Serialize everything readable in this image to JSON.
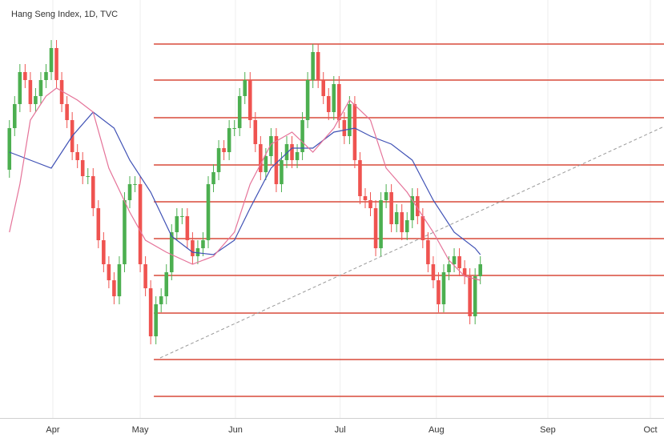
{
  "chart_data": {
    "type": "candlestick",
    "title": "Hang Seng Index, 1D, TVC",
    "xlim": [
      -1.8,
      125.1
    ],
    "ylim": [
      30,
      552
    ],
    "xticks": [
      {
        "value": 8.3,
        "label": "Apr"
      },
      {
        "value": 25,
        "label": "May"
      },
      {
        "value": 43.2,
        "label": "Jun"
      },
      {
        "value": 63.2,
        "label": "Jul"
      },
      {
        "value": 81.6,
        "label": "Aug"
      },
      {
        "value": 102.9,
        "label": "Sep"
      },
      {
        "value": 122.5,
        "label": "Oct"
      }
    ],
    "grid": true,
    "up_color": "#4caf50",
    "down_color": "#ef5350",
    "open": [
      340,
      392,
      422,
      462,
      452,
      422,
      432,
      452,
      462,
      492,
      452,
      422,
      402,
      362,
      352,
      332,
      332,
      292,
      252,
      222,
      202,
      182,
      222,
      302,
      322,
      322,
      222,
      192,
      132,
      172,
      182,
      212,
      262,
      282,
      282,
      252,
      232,
      242,
      252,
      322,
      337,
      367,
      362,
      392,
      392,
      432,
      452,
      402,
      372,
      337,
      357,
      382,
      322,
      352,
      372,
      352,
      362,
      402,
      452,
      487,
      452,
      432,
      412,
      447,
      402,
      382,
      422,
      352,
      307,
      302,
      292,
      242,
      302,
      312,
      272,
      287,
      262,
      277,
      307,
      282,
      252,
      222,
      202,
      172,
      212,
      222,
      232,
      217,
      207,
      157,
      207
    ],
    "high": [
      402,
      432,
      472,
      472,
      462,
      442,
      462,
      472,
      502,
      502,
      462,
      432,
      412,
      372,
      362,
      342,
      342,
      302,
      262,
      232,
      212,
      232,
      312,
      332,
      332,
      332,
      232,
      202,
      182,
      192,
      222,
      272,
      292,
      292,
      292,
      262,
      252,
      262,
      332,
      347,
      377,
      377,
      402,
      402,
      442,
      462,
      462,
      412,
      382,
      367,
      392,
      392,
      362,
      382,
      382,
      372,
      412,
      462,
      497,
      497,
      462,
      442,
      457,
      457,
      412,
      432,
      432,
      362,
      317,
      312,
      302,
      312,
      322,
      322,
      297,
      297,
      287,
      317,
      317,
      292,
      262,
      232,
      212,
      222,
      232,
      242,
      242,
      227,
      217,
      217,
      232
    ],
    "low": [
      330,
      382,
      412,
      442,
      412,
      412,
      422,
      442,
      452,
      442,
      412,
      392,
      352,
      342,
      322,
      322,
      282,
      242,
      212,
      192,
      172,
      172,
      212,
      292,
      312,
      212,
      182,
      122,
      122,
      162,
      172,
      202,
      252,
      272,
      242,
      222,
      222,
      232,
      242,
      312,
      327,
      352,
      352,
      382,
      382,
      422,
      392,
      362,
      327,
      327,
      347,
      312,
      312,
      342,
      342,
      342,
      352,
      392,
      442,
      442,
      422,
      402,
      402,
      392,
      372,
      372,
      342,
      297,
      292,
      282,
      232,
      232,
      292,
      262,
      262,
      252,
      252,
      267,
      272,
      242,
      212,
      192,
      162,
      162,
      202,
      212,
      207,
      197,
      147,
      147,
      197
    ],
    "close": [
      392,
      422,
      462,
      452,
      422,
      432,
      452,
      462,
      492,
      452,
      422,
      402,
      362,
      352,
      332,
      332,
      292,
      252,
      222,
      202,
      182,
      222,
      302,
      322,
      322,
      222,
      192,
      132,
      172,
      182,
      212,
      262,
      282,
      282,
      252,
      232,
      242,
      252,
      322,
      337,
      367,
      362,
      392,
      392,
      432,
      452,
      402,
      372,
      337,
      357,
      382,
      322,
      352,
      372,
      352,
      362,
      402,
      452,
      487,
      452,
      432,
      412,
      447,
      402,
      382,
      422,
      352,
      307,
      302,
      292,
      242,
      302,
      312,
      272,
      287,
      262,
      277,
      307,
      282,
      252,
      222,
      202,
      172,
      212,
      222,
      232,
      217,
      207,
      157,
      207,
      222
    ],
    "ma": [
      {
        "color": "#3f51b5",
        "x": [
          0,
          4,
          8,
          12,
          16,
          20,
          23,
          27,
          31,
          35,
          39,
          43,
          46,
          50,
          54,
          58,
          62,
          66,
          69,
          73,
          77,
          81,
          85,
          89,
          90
        ],
        "values": [
          362,
          352,
          342,
          382,
          412,
          392,
          352,
          312,
          257,
          237,
          234,
          252,
          292,
          342,
          367,
          367,
          387,
          392,
          382,
          372,
          352,
          302,
          262,
          242,
          234
        ]
      },
      {
        "color": "#e57399",
        "x": [
          0,
          2,
          4,
          7,
          9,
          13,
          16,
          19,
          23,
          26,
          30,
          35,
          39,
          43,
          46,
          50,
          54,
          58,
          62,
          65,
          69,
          72,
          76,
          81,
          84,
          87,
          90
        ],
        "values": [
          262,
          322,
          402,
          432,
          442,
          427,
          412,
          342,
          287,
          252,
          237,
          222,
          232,
          262,
          322,
          372,
          387,
          362,
          392,
          427,
          402,
          342,
          312,
          262,
          227,
          207,
          202
        ]
      }
    ],
    "levels": [
      497,
      452,
      405,
      346,
      300,
      254,
      208,
      161,
      103,
      57
    ],
    "levels_color": "#d84a3a",
    "levels_from_x": 27.6,
    "trendline": {
      "color": "#999999",
      "x": [
        28.8,
        125.1
      ],
      "values": [
        105,
        394
      ]
    }
  }
}
